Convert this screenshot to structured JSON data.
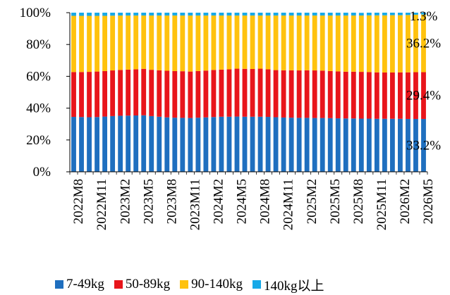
{
  "chart_data": {
    "type": "bar",
    "stacked": true,
    "percent": true,
    "ylim": [
      0,
      100
    ],
    "yticks": [
      "0%",
      "20%",
      "40%",
      "60%",
      "80%",
      "100%"
    ],
    "x_tick_labels": [
      "2022M8",
      "2022M11",
      "2023M2",
      "2023M5",
      "2023M8",
      "2023M11",
      "2024M2",
      "2024M5",
      "2024M8",
      "2024M11",
      "2025M2",
      "2025M5",
      "2025M8",
      "2025M11",
      "2026M2",
      "2026M5"
    ],
    "categories": [
      "2022M8",
      "2022M9",
      "2022M10",
      "2022M11",
      "2022M12",
      "2023M1",
      "2023M2",
      "2023M3",
      "2023M4",
      "2023M5",
      "2023M6",
      "2023M7",
      "2023M8",
      "2023M9",
      "2023M10",
      "2023M11",
      "2023M12",
      "2024M1",
      "2024M2",
      "2024M3",
      "2024M4",
      "2024M5",
      "2024M6",
      "2024M7",
      "2024M8",
      "2024M9",
      "2024M10",
      "2024M11",
      "2024M12",
      "2025M1",
      "2025M2",
      "2025M3",
      "2025M4",
      "2025M5",
      "2025M6",
      "2025M7",
      "2025M8",
      "2025M9",
      "2025M10",
      "2025M11",
      "2025M12",
      "2026M1",
      "2026M2",
      "2026M3",
      "2026M4",
      "2026M5"
    ],
    "series": [
      {
        "name": "7-49kg",
        "color": "#1f6fbf",
        "values": [
          34.5,
          34.4,
          34.3,
          34.4,
          34.7,
          35.0,
          35.2,
          35.3,
          35.4,
          35.5,
          35.0,
          34.6,
          34.2,
          34.0,
          33.9,
          33.8,
          34.0,
          34.2,
          34.4,
          34.6,
          34.6,
          34.7,
          34.6,
          34.6,
          34.6,
          34.5,
          34.3,
          34.1,
          34.0,
          33.9,
          33.9,
          33.8,
          33.8,
          33.7,
          33.6,
          33.5,
          33.5,
          33.4,
          33.4,
          33.3,
          33.3,
          33.3,
          33.3,
          33.2,
          33.2,
          33.2
        ]
      },
      {
        "name": "50-89kg",
        "color": "#e8151b",
        "values": [
          28.2,
          28.3,
          28.5,
          28.6,
          28.6,
          28.7,
          28.8,
          28.9,
          29.0,
          29.2,
          29.1,
          29.2,
          29.3,
          29.3,
          29.3,
          29.2,
          29.3,
          29.4,
          29.6,
          29.6,
          29.8,
          30.1,
          30.1,
          30.0,
          30.2,
          29.9,
          29.6,
          29.7,
          29.8,
          29.8,
          29.9,
          29.9,
          29.8,
          29.6,
          29.5,
          29.4,
          29.4,
          29.4,
          29.3,
          29.2,
          29.1,
          29.1,
          29.2,
          29.3,
          29.4,
          29.4
        ]
      },
      {
        "name": "90-140kg",
        "color": "#ffc20e",
        "values": [
          35.3,
          35.3,
          35.2,
          35.0,
          34.7,
          34.4,
          34.2,
          34.0,
          33.8,
          33.5,
          34.1,
          34.4,
          34.7,
          34.9,
          35.0,
          35.2,
          34.9,
          34.6,
          34.2,
          34.0,
          33.8,
          33.4,
          33.5,
          33.6,
          33.4,
          33.8,
          34.3,
          34.4,
          34.4,
          34.5,
          34.4,
          34.5,
          34.6,
          34.9,
          35.1,
          35.3,
          35.3,
          35.4,
          35.6,
          35.8,
          35.9,
          36.0,
          35.9,
          36.0,
          36.1,
          36.2
        ]
      },
      {
        "name": "140kg以上",
        "color": "#17a9e8",
        "values": [
          2.0,
          2.0,
          2.0,
          2.0,
          2.0,
          1.9,
          1.8,
          1.8,
          1.8,
          1.8,
          1.8,
          1.8,
          1.8,
          1.8,
          1.8,
          1.8,
          1.8,
          1.8,
          1.8,
          1.8,
          1.8,
          1.8,
          1.8,
          1.8,
          1.8,
          1.8,
          1.8,
          1.8,
          1.8,
          1.8,
          1.8,
          1.8,
          1.8,
          1.8,
          1.8,
          1.8,
          1.8,
          1.7,
          1.7,
          1.7,
          1.7,
          1.6,
          1.6,
          1.5,
          1.3,
          1.3
        ]
      }
    ],
    "last_bar_labels": [
      "33.2%",
      "29.4%",
      "36.2%",
      "1.3%"
    ],
    "legend_position": "bottom",
    "grid": false
  }
}
